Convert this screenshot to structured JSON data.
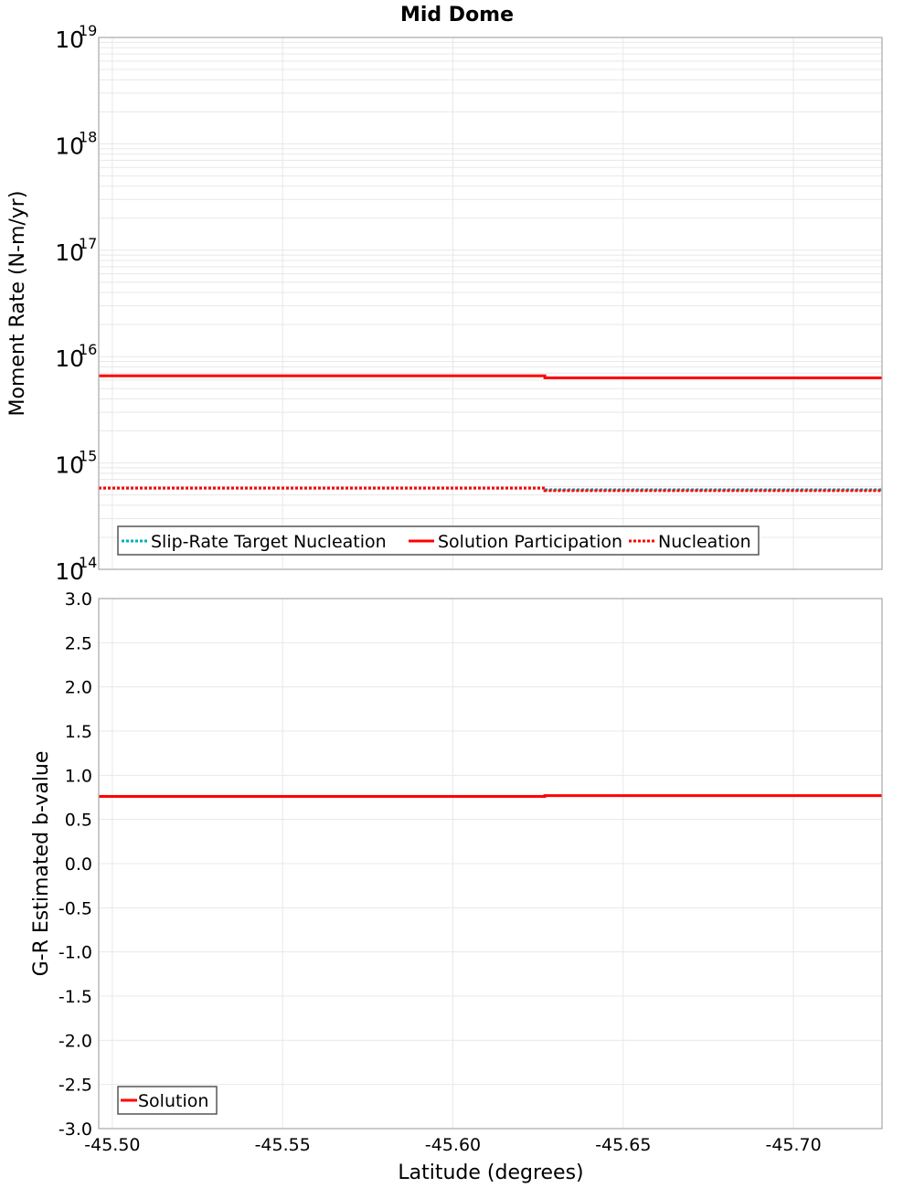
{
  "title": "Mid Dome",
  "colors": {
    "slip_rate_target": "#00b0b8",
    "solution": "#ff0000",
    "nucleation": "#ff0000",
    "grid": "#e8e8e8",
    "frame": "#a8a8a8"
  },
  "top_plot": {
    "ylabel": "Moment Rate (N-m/yr)",
    "y_ticks": [
      {
        "base": "10",
        "exp": "19"
      },
      {
        "base": "10",
        "exp": "18"
      },
      {
        "base": "10",
        "exp": "17"
      },
      {
        "base": "10",
        "exp": "16"
      },
      {
        "base": "10",
        "exp": "15"
      },
      {
        "base": "10",
        "exp": "14"
      }
    ],
    "legend": [
      {
        "label": "Slip-Rate Target Nucleation",
        "style": "dotted",
        "color": "#00b0b8"
      },
      {
        "label": "Solution Participation",
        "style": "solid",
        "color": "#ff0000"
      },
      {
        "label": "Nucleation",
        "style": "dotted",
        "color": "#ff0000"
      }
    ]
  },
  "bottom_plot": {
    "ylabel": "G-R Estimated b-value",
    "y_ticks": [
      "3.0",
      "2.5",
      "2.0",
      "1.5",
      "1.0",
      "0.5",
      "0.0",
      "-0.5",
      "-1.0",
      "-1.5",
      "-2.0",
      "-2.5",
      "-3.0"
    ],
    "legend": [
      {
        "label": "Solution",
        "style": "solid",
        "color": "#ff0000"
      }
    ]
  },
  "x_axis": {
    "label": "Latitude (degrees)",
    "ticks": [
      "-45.50",
      "-45.55",
      "-45.60",
      "-45.65",
      "-45.70"
    ]
  },
  "chart_data": [
    {
      "type": "line",
      "title": "Mid Dome",
      "xlabel": "Latitude (degrees)",
      "ylabel": "Moment Rate (N-m/yr)",
      "yscale": "log",
      "ylim": [
        100000000000000.0,
        1e+19
      ],
      "xlim": [
        -45.496,
        -45.726
      ],
      "grid": true,
      "legend_position": "lower-left",
      "x_step_edges": [
        -45.496,
        -45.548,
        -45.627,
        -45.726
      ],
      "series": [
        {
          "name": "Slip-Rate Target Nucleation",
          "style": "dotted",
          "color": "#00b0b8",
          "values": [
            580000000000000.0,
            580000000000000.0,
            560000000000000.0
          ]
        },
        {
          "name": "Solution Participation",
          "style": "solid",
          "color": "#ff0000",
          "values": [
            6600000000000000.0,
            6600000000000000.0,
            6300000000000000.0
          ]
        },
        {
          "name": "Nucleation",
          "style": "dotted",
          "color": "#ff0000",
          "values": [
            580000000000000.0,
            580000000000000.0,
            550000000000000.0
          ]
        }
      ]
    },
    {
      "type": "line",
      "xlabel": "Latitude (degrees)",
      "ylabel": "G-R Estimated b-value",
      "ylim": [
        -3.0,
        3.0
      ],
      "xlim": [
        -45.496,
        -45.726
      ],
      "grid": true,
      "legend_position": "lower-left",
      "x_step_edges": [
        -45.496,
        -45.548,
        -45.627,
        -45.726
      ],
      "series": [
        {
          "name": "Solution",
          "style": "solid",
          "color": "#ff0000",
          "values": [
            0.76,
            0.76,
            0.77
          ]
        }
      ]
    }
  ]
}
